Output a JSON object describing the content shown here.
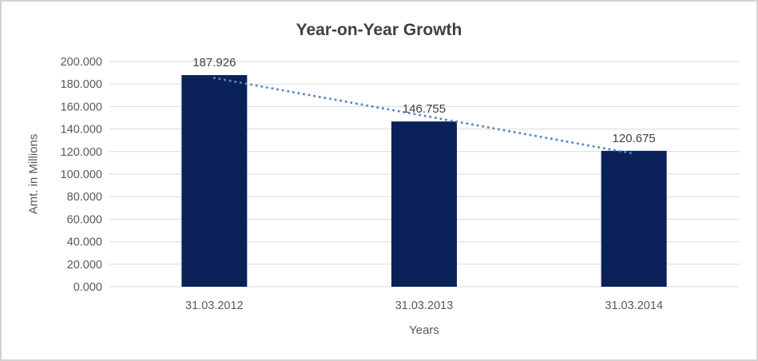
{
  "window": {
    "background_color": "#ffffff",
    "border_color": "#d2d2d2"
  },
  "chart_data": {
    "type": "bar",
    "title": "Year-on-Year Growth",
    "xlabel": "Years",
    "ylabel": "Amt. in Millions",
    "categories": [
      "31.03.2012",
      "31.03.2013",
      "31.03.2014"
    ],
    "series": [
      {
        "name": "Amt. in Millions",
        "values": [
          187.926,
          146.755,
          120.675
        ]
      }
    ],
    "data_labels": [
      "187.926",
      "146.755",
      "120.675"
    ],
    "ylim": [
      0,
      200
    ],
    "yticks": [
      {
        "value": 0,
        "label": "0.000"
      },
      {
        "value": 20,
        "label": "20.000"
      },
      {
        "value": 40,
        "label": "40.000"
      },
      {
        "value": 60,
        "label": "60.000"
      },
      {
        "value": 80,
        "label": "80.000"
      },
      {
        "value": 100,
        "label": "100.000"
      },
      {
        "value": 120,
        "label": "120.000"
      },
      {
        "value": 140,
        "label": "140.000"
      },
      {
        "value": 160,
        "label": "160.000"
      },
      {
        "value": 180,
        "label": "180.000"
      },
      {
        "value": 200,
        "label": "200.000"
      }
    ],
    "grid": true,
    "legend": "none",
    "trendline": {
      "type": "linear",
      "style": "dotted"
    },
    "colors": {
      "bar": "#0a2259",
      "trendline": "#5488c7",
      "gridline": "#d9d9d9",
      "title_text": "#404040",
      "axis_text": "#595959",
      "data_label_text": "#404040"
    }
  }
}
